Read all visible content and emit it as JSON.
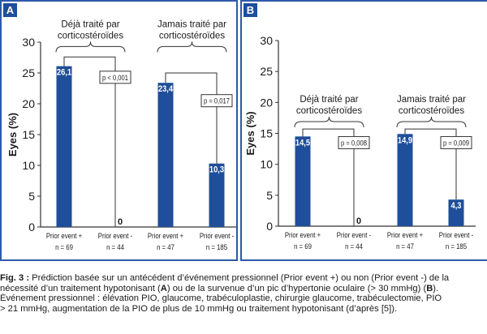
{
  "colors": {
    "bar": "#1f4e9a",
    "border": "#2e5aa8",
    "text": "#1a1a1a"
  },
  "chart_data": [
    {
      "panel": "A",
      "type": "bar",
      "ylabel": "Eyes (%)",
      "ylim": [
        0,
        30
      ],
      "yticks": [
        0,
        5,
        10,
        15,
        20,
        25,
        30
      ],
      "categories": [
        {
          "label": "Prior event +",
          "n": "n = 69"
        },
        {
          "label": "Prior event -",
          "n": "n = 44"
        },
        {
          "label": "Prior event +",
          "n": "n = 47"
        },
        {
          "label": "Prior event -",
          "n": "n = 185"
        }
      ],
      "values": [
        26.1,
        0,
        23.4,
        10.3
      ],
      "value_labels": [
        "26,1",
        "0",
        "23,4",
        "10,3"
      ],
      "groups": [
        {
          "title": [
            "Déjà traité par",
            "corticostéroïdes"
          ],
          "p": "p < 0,001"
        },
        {
          "title": [
            "Jamais traité par",
            "corticostéroïdes"
          ],
          "p": "p = 0,017"
        }
      ]
    },
    {
      "panel": "B",
      "type": "bar",
      "ylabel": "Eyes (%)",
      "ylim": [
        0,
        30
      ],
      "yticks": [
        0,
        5,
        10,
        15,
        20,
        25,
        30
      ],
      "categories": [
        {
          "label": "Prior event +",
          "n": "n = 69"
        },
        {
          "label": "Prior event -",
          "n": "n = 44"
        },
        {
          "label": "Prior event +",
          "n": "n = 47"
        },
        {
          "label": "Prior event -",
          "n": "n = 185"
        }
      ],
      "values": [
        14.5,
        0,
        14.9,
        4.3
      ],
      "value_labels": [
        "14,5",
        "0",
        "14,9",
        "4,3"
      ],
      "groups": [
        {
          "title": [
            "Déjà traité par",
            "corticostéroïdes"
          ],
          "p": "p = 0,008"
        },
        {
          "title": [
            "Jamais traité par",
            "corticostéroïdes"
          ],
          "p": "p = 0,009"
        }
      ]
    }
  ],
  "caption": {
    "fig": "Fig. 3 :",
    "l1": " Prédiction basée sur un antécédent d’événement pressionnel (Prior event +) ou non (Prior event -) de la",
    "l2a": "nécessité d’un traitement hypotonisant (",
    "A": "A",
    "l2b": ") ou de la survenue d’un pic d’hypertonie oculaire (> 30 mmHg) (",
    "B": "B",
    "l2c": ").",
    "l3": "Événement pressionnel : élévation PIO, glaucome, trabéculoplastie, chirurgie glaucome, trabéculectomie, PIO",
    "l4": "> 21 mmHg, augmentation de la PIO de plus de 10 mmHg ou traitement hypotonisant (d’après [5])."
  }
}
